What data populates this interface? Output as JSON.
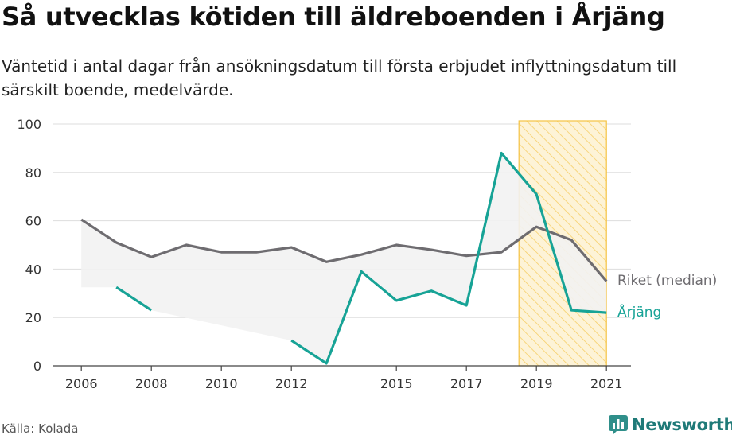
{
  "title": "Så utvecklas kötiden till äldreboenden i Årjäng",
  "subtitle": "Väntetid i antal dagar från ansökningsdatum till första erbjudet inflyttningsdatum till särskilt boende, medelvärde.",
  "source": "Källa: Kolada",
  "brand": "Newsworthy",
  "colors": {
    "riket": "#6e6c70",
    "arjang": "#17a396",
    "highlight": "#f5c342",
    "grid": "#dddddd",
    "fill": "#f2f2f2"
  },
  "chart_data": {
    "type": "line",
    "x_ticks": [
      "2006",
      "2008",
      "2010",
      "2012",
      "2015",
      "2017",
      "2019",
      "2021"
    ],
    "y_ticks": [
      "0",
      "20",
      "40",
      "60",
      "80",
      "100"
    ],
    "ylim": [
      0,
      100
    ],
    "xlim": [
      2005.2,
      2021.7
    ],
    "highlight_range": [
      2018.5,
      2021
    ],
    "series": [
      {
        "name": "Riket (median)",
        "x": [
          2006,
          2007,
          2008,
          2009,
          2010,
          2011,
          2012,
          2013,
          2014,
          2015,
          2016,
          2017,
          2018,
          2019,
          2020,
          2021
        ],
        "values": [
          60.5,
          51,
          45,
          50,
          47,
          47,
          49,
          43,
          46,
          50,
          48,
          45.5,
          47,
          57.5,
          52,
          35
        ]
      },
      {
        "name": "Årjäng",
        "x": [
          2006,
          2007,
          2008,
          2009,
          2010,
          2011,
          2012,
          2013,
          2014,
          2015,
          2016,
          2017,
          2018,
          2019,
          2020,
          2021
        ],
        "values": [
          null,
          32.5,
          23,
          null,
          null,
          null,
          10.5,
          1,
          39,
          27,
          31,
          25,
          88,
          71,
          23,
          22
        ]
      }
    ]
  }
}
